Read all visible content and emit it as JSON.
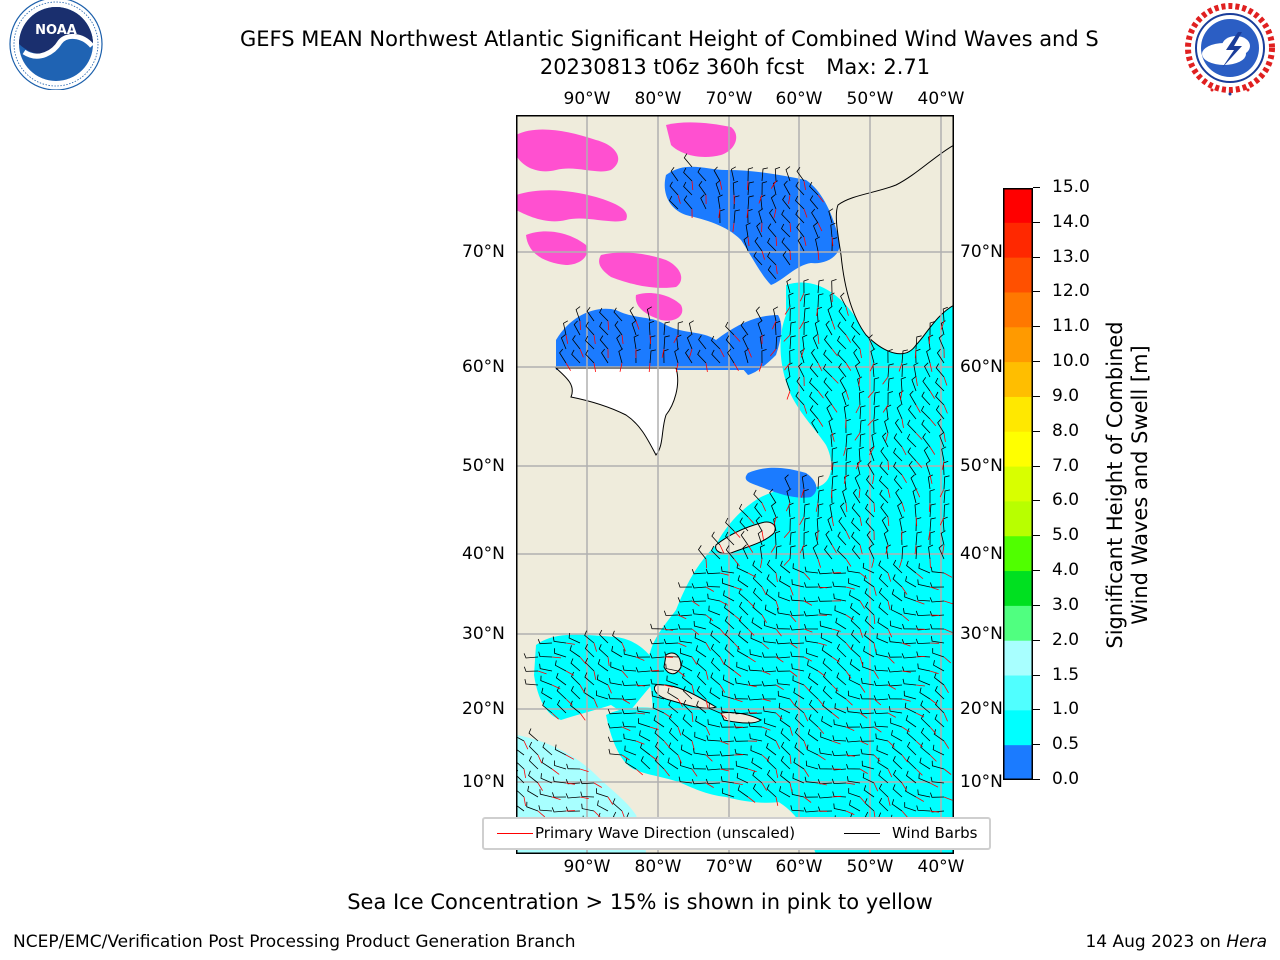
{
  "header": {
    "title_line1": "GEFS MEAN Northwest Atlantic Significant Height of Combined Wind Waves and S",
    "date_fcst": "20230813 t06z 360h fcst",
    "max_label": "Max: 2.71"
  },
  "logos": {
    "noaa_text": "NOAA",
    "noaa_ring_text": "NATIONAL OCEANIC AND ATMOSPHERIC ADMINISTRATION · U.S. DEPARTMENT OF COMMERCE",
    "nws_ring_text": "NATIONAL WEATHER SERVICE"
  },
  "map": {
    "lon_labels": [
      "90°W",
      "80°W",
      "70°W",
      "60°W",
      "50°W",
      "40°W"
    ],
    "lat_labels": [
      "70°N",
      "60°N",
      "50°N",
      "40°N",
      "30°N",
      "20°N",
      "10°N"
    ],
    "colors": {
      "land": "#efecdc",
      "ocean_light": "#00ffff",
      "ocean_pale": "#a8ffff",
      "ocean_blue": "#1b7bff",
      "sea_ice": "#ff50d0",
      "grid": "#b0b0b0",
      "wave_direction": "#ff0000",
      "wind_barb": "#000000"
    }
  },
  "legend": {
    "wave_direction": "Primary Wave Direction (unscaled)",
    "wind_barbs": "Wind Barbs"
  },
  "colorbar": {
    "title_line1": "Significant Height of Combined",
    "title_line2": "Wind Waves and Swell [m]",
    "tick_labels": [
      "15.0",
      "14.0",
      "13.0",
      "12.0",
      "11.0",
      "10.0",
      "9.0",
      "8.0",
      "7.0",
      "6.0",
      "5.0",
      "4.0",
      "3.0",
      "2.0",
      "1.5",
      "1.0",
      "0.5",
      "0.0"
    ],
    "colors_top_to_bottom": [
      "#ff0000",
      "#ff2800",
      "#ff5000",
      "#ff7800",
      "#ff9a00",
      "#ffbe00",
      "#ffe800",
      "#ffff00",
      "#d8ff00",
      "#b8ff00",
      "#50ff00",
      "#00e020",
      "#50ff80",
      "#a8ffff",
      "#50ffff",
      "#00ffff",
      "#1b7bff",
      "#0000ff"
    ]
  },
  "footer": {
    "note": "Sea Ice Concentration > 15% is shown in pink to yellow",
    "branch": "NCEP/EMC/Verification Post Processing Product Generation Branch",
    "date_prefix": "14 Aug 2023 on",
    "machine": "Hera"
  }
}
